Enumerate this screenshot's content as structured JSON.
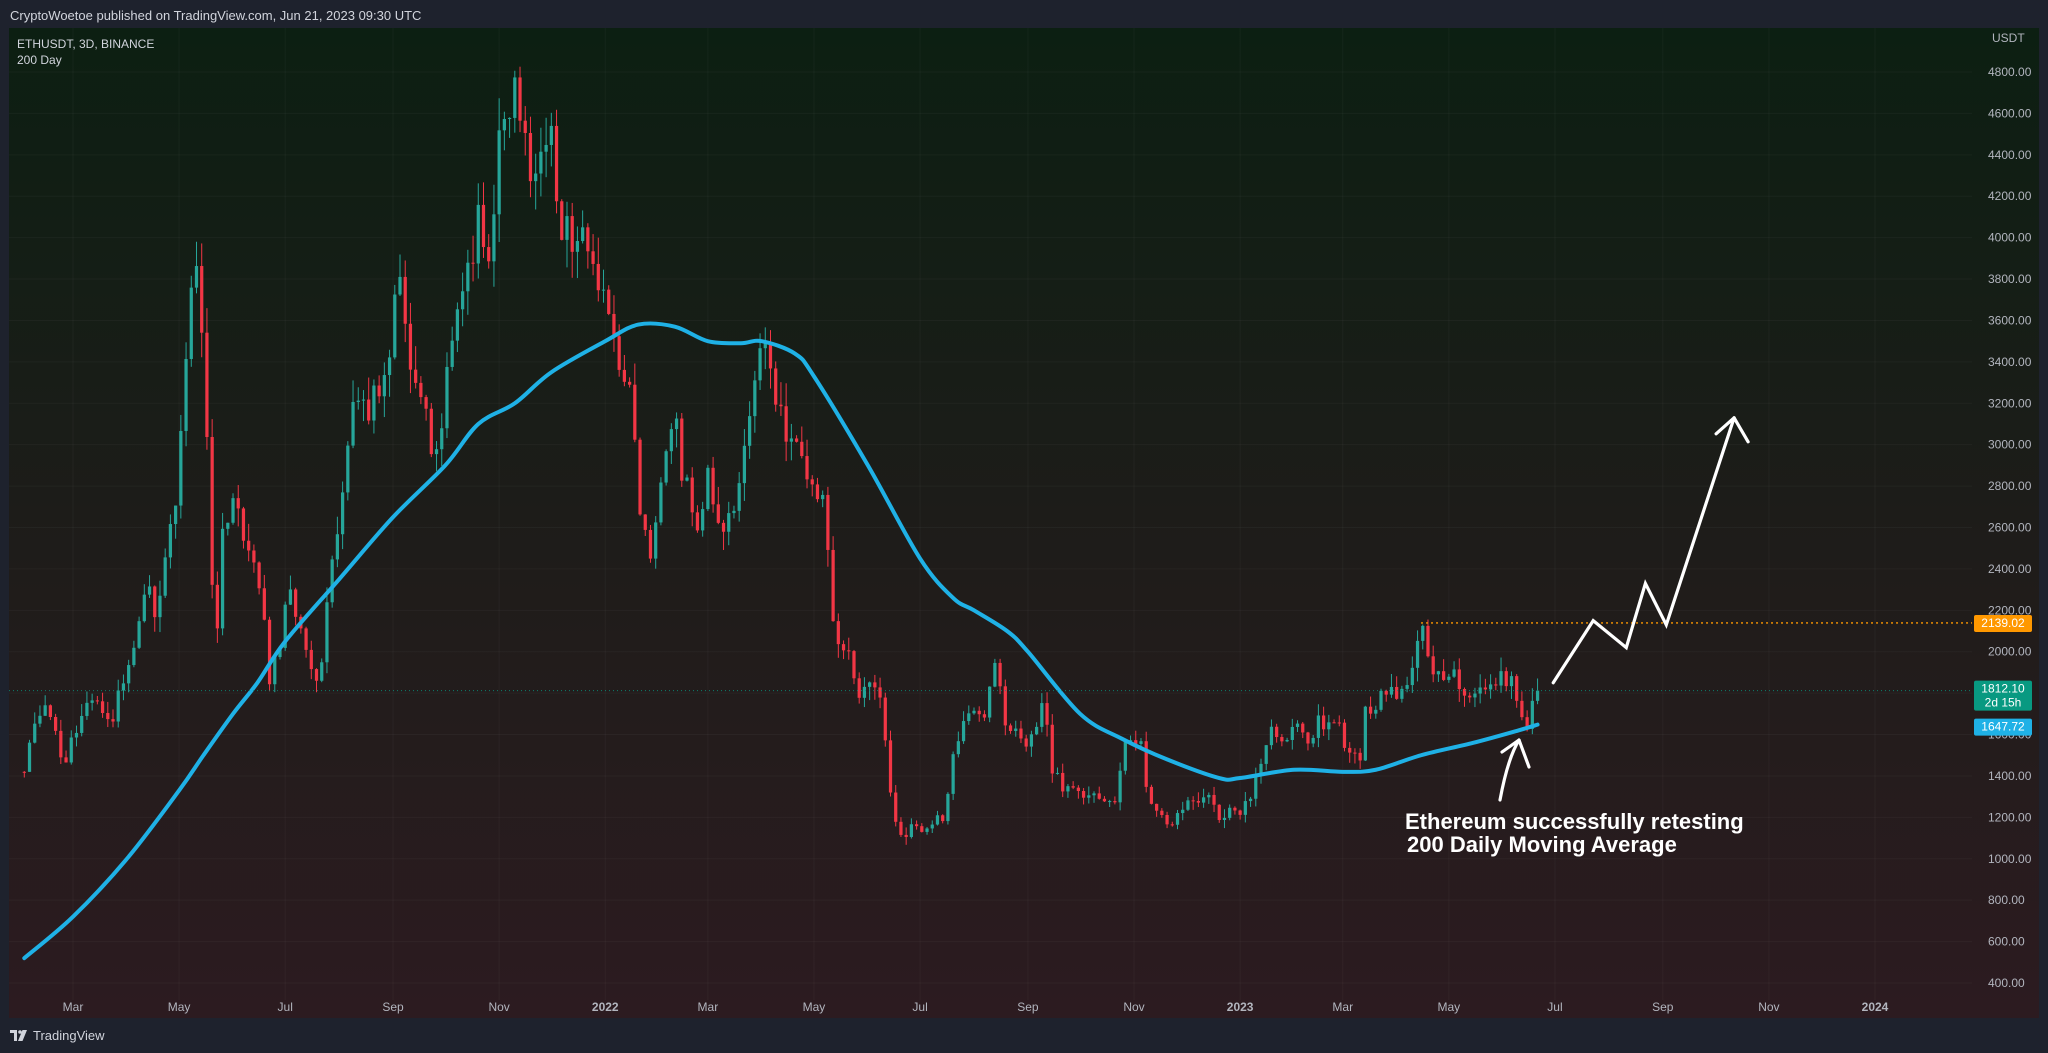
{
  "header": {
    "text": "CryptoWoetoe published on TradingView.com, Jun 21, 2023 09:30 UTC"
  },
  "legend": {
    "symbol": "ETHUSDT, 3D, BINANCE",
    "indicator": "200 Day"
  },
  "footer": {
    "brand": "TradingView",
    "logo_icon": "tradingview-logo-icon"
  },
  "annotation": {
    "line1": "Ethereum successfully retesting",
    "line2": "200 Daily Moving Average"
  },
  "colors": {
    "up": "#26a69a",
    "down": "#f23645",
    "ma": "#1fb1e6",
    "level": "#ff9800",
    "last_price": "#089981",
    "bg_top": "#0c1f12",
    "bg_bottom": "#2c1b20"
  },
  "chart_data": {
    "type": "candlestick",
    "symbol": "ETHUSDT",
    "timeframe": "3D",
    "exchange": "BINANCE",
    "currency_label": "USDT",
    "y_ticks": [
      400,
      600,
      800,
      1000,
      1200,
      1400,
      1600,
      1800,
      2000,
      2200,
      2400,
      2600,
      2800,
      3000,
      3200,
      3400,
      3600,
      3800,
      4000,
      4200,
      4400,
      4600,
      4800
    ],
    "x_ticks": [
      {
        "label": "Mar",
        "date": "2021-03-01"
      },
      {
        "label": "May",
        "date": "2021-05-01"
      },
      {
        "label": "Jul",
        "date": "2021-07-01"
      },
      {
        "label": "Sep",
        "date": "2021-09-01"
      },
      {
        "label": "Nov",
        "date": "2021-11-01"
      },
      {
        "label": "2022",
        "date": "2022-01-01"
      },
      {
        "label": "Mar",
        "date": "2022-03-01"
      },
      {
        "label": "May",
        "date": "2022-05-01"
      },
      {
        "label": "Jul",
        "date": "2022-07-01"
      },
      {
        "label": "Sep",
        "date": "2022-09-01"
      },
      {
        "label": "Nov",
        "date": "2022-11-01"
      },
      {
        "label": "2023",
        "date": "2023-01-01"
      },
      {
        "label": "Mar",
        "date": "2023-03-01"
      },
      {
        "label": "May",
        "date": "2023-05-01"
      },
      {
        "label": "Jul",
        "date": "2023-07-01"
      },
      {
        "label": "Sep",
        "date": "2023-09-01"
      },
      {
        "label": "Nov",
        "date": "2023-11-01"
      },
      {
        "label": "2024",
        "date": "2024-01-01"
      }
    ],
    "close_path": [
      [
        "2021-02-01",
        1420
      ],
      [
        "2021-02-08",
        1650
      ],
      [
        "2021-02-14",
        1800
      ],
      [
        "2021-02-22",
        1450
      ],
      [
        "2021-03-01",
        1560
      ],
      [
        "2021-03-08",
        1770
      ],
      [
        "2021-03-15",
        1800
      ],
      [
        "2021-03-22",
        1600
      ],
      [
        "2021-03-29",
        1850
      ],
      [
        "2021-04-05",
        2050
      ],
      [
        "2021-04-12",
        2300
      ],
      [
        "2021-04-18",
        2200
      ],
      [
        "2021-04-24",
        2450
      ],
      [
        "2021-05-01",
        2900
      ],
      [
        "2021-05-06",
        3500
      ],
      [
        "2021-05-10",
        3950
      ],
      [
        "2021-05-16",
        3400
      ],
      [
        "2021-05-19",
        2400
      ],
      [
        "2021-05-23",
        2150
      ],
      [
        "2021-05-27",
        2700
      ],
      [
        "2021-06-03",
        2650
      ],
      [
        "2021-06-10",
        2450
      ],
      [
        "2021-06-16",
        2300
      ],
      [
        "2021-06-22",
        1900
      ],
      [
        "2021-06-27",
        1950
      ],
      [
        "2021-07-03",
        2300
      ],
      [
        "2021-07-08",
        2100
      ],
      [
        "2021-07-15",
        1950
      ],
      [
        "2021-07-20",
        1800
      ],
      [
        "2021-07-25",
        2300
      ],
      [
        "2021-08-01",
        2600
      ],
      [
        "2021-08-08",
        3100
      ],
      [
        "2021-08-15",
        3200
      ],
      [
        "2021-08-22",
        3200
      ],
      [
        "2021-08-28",
        3250
      ],
      [
        "2021-09-03",
        3900
      ],
      [
        "2021-09-07",
        3500
      ],
      [
        "2021-09-12",
        3400
      ],
      [
        "2021-09-18",
        3300
      ],
      [
        "2021-09-24",
        2900
      ],
      [
        "2021-09-29",
        3000
      ],
      [
        "2021-10-03",
        3400
      ],
      [
        "2021-10-08",
        3600
      ],
      [
        "2021-10-14",
        3800
      ],
      [
        "2021-10-20",
        4150
      ],
      [
        "2021-10-26",
        4000
      ],
      [
        "2021-11-01",
        4450
      ],
      [
        "2021-11-07",
        4700
      ],
      [
        "2021-11-10",
        4750
      ],
      [
        "2021-11-14",
        4600
      ],
      [
        "2021-11-18",
        4150
      ],
      [
        "2021-11-24",
        4300
      ],
      [
        "2021-11-30",
        4550
      ],
      [
        "2021-12-04",
        4200
      ],
      [
        "2021-12-10",
        4000
      ],
      [
        "2021-12-16",
        3950
      ],
      [
        "2021-12-22",
        4000
      ],
      [
        "2021-12-28",
        3800
      ],
      [
        "2022-01-02",
        3750
      ],
      [
        "2022-01-07",
        3400
      ],
      [
        "2022-01-13",
        3300
      ],
      [
        "2022-01-19",
        3000
      ],
      [
        "2022-01-22",
        2550
      ],
      [
        "2022-01-28",
        2500
      ],
      [
        "2022-02-03",
        2800
      ],
      [
        "2022-02-09",
        3200
      ],
      [
        "2022-02-14",
        2900
      ],
      [
        "2022-02-19",
        2700
      ],
      [
        "2022-02-24",
        2600
      ],
      [
        "2022-03-01",
        2900
      ],
      [
        "2022-03-07",
        2550
      ],
      [
        "2022-03-13",
        2600
      ],
      [
        "2022-03-19",
        2900
      ],
      [
        "2022-03-25",
        3100
      ],
      [
        "2022-03-29",
        3400
      ],
      [
        "2022-04-02",
        3450
      ],
      [
        "2022-04-08",
        3300
      ],
      [
        "2022-04-14",
        3050
      ],
      [
        "2022-04-20",
        3050
      ],
      [
        "2022-04-26",
        2850
      ],
      [
        "2022-05-02",
        2800
      ],
      [
        "2022-05-06",
        2700
      ],
      [
        "2022-05-10",
        2350
      ],
      [
        "2022-05-14",
        2050
      ],
      [
        "2022-05-20",
        2000
      ],
      [
        "2022-05-26",
        1800
      ],
      [
        "2022-06-01",
        1850
      ],
      [
        "2022-06-07",
        1800
      ],
      [
        "2022-06-12",
        1500
      ],
      [
        "2022-06-16",
        1200
      ],
      [
        "2022-06-20",
        1100
      ],
      [
        "2022-06-28",
        1150
      ],
      [
        "2022-07-04",
        1100
      ],
      [
        "2022-07-08",
        1200
      ],
      [
        "2022-07-14",
        1150
      ],
      [
        "2022-07-19",
        1450
      ],
      [
        "2022-07-24",
        1600
      ],
      [
        "2022-07-30",
        1700
      ],
      [
        "2022-08-05",
        1650
      ],
      [
        "2022-08-10",
        1850
      ],
      [
        "2022-08-14",
        1950
      ],
      [
        "2022-08-19",
        1650
      ],
      [
        "2022-08-25",
        1600
      ],
      [
        "2022-08-31",
        1550
      ],
      [
        "2022-09-06",
        1600
      ],
      [
        "2022-09-10",
        1750
      ],
      [
        "2022-09-15",
        1450
      ],
      [
        "2022-09-21",
        1300
      ],
      [
        "2022-09-27",
        1350
      ],
      [
        "2022-10-03",
        1300
      ],
      [
        "2022-10-09",
        1300
      ],
      [
        "2022-10-15",
        1280
      ],
      [
        "2022-10-21",
        1300
      ],
      [
        "2022-10-27",
        1550
      ],
      [
        "2022-11-02",
        1600
      ],
      [
        "2022-11-06",
        1550
      ],
      [
        "2022-11-09",
        1300
      ],
      [
        "2022-11-14",
        1250
      ],
      [
        "2022-11-20",
        1150
      ],
      [
        "2022-11-26",
        1200
      ],
      [
        "2022-12-02",
        1250
      ],
      [
        "2022-12-08",
        1280
      ],
      [
        "2022-12-14",
        1300
      ],
      [
        "2022-12-18",
        1200
      ],
      [
        "2022-12-24",
        1220
      ],
      [
        "2022-12-30",
        1200
      ],
      [
        "2023-01-05",
        1250
      ],
      [
        "2023-01-11",
        1400
      ],
      [
        "2023-01-15",
        1550
      ],
      [
        "2023-01-21",
        1620
      ],
      [
        "2023-01-27",
        1600
      ],
      [
        "2023-02-02",
        1650
      ],
      [
        "2023-02-08",
        1550
      ],
      [
        "2023-02-14",
        1650
      ],
      [
        "2023-02-20",
        1680
      ],
      [
        "2023-02-26",
        1620
      ],
      [
        "2023-03-04",
        1560
      ],
      [
        "2023-03-10",
        1450
      ],
      [
        "2023-03-14",
        1700
      ],
      [
        "2023-03-20",
        1750
      ],
      [
        "2023-03-26",
        1780
      ],
      [
        "2023-04-01",
        1800
      ],
      [
        "2023-04-07",
        1850
      ],
      [
        "2023-04-12",
        1950
      ],
      [
        "2023-04-15",
        2100
      ],
      [
        "2023-04-20",
        1950
      ],
      [
        "2023-04-26",
        1880
      ],
      [
        "2023-05-02",
        1880
      ],
      [
        "2023-05-08",
        1850
      ],
      [
        "2023-05-14",
        1800
      ],
      [
        "2023-05-20",
        1820
      ],
      [
        "2023-05-26",
        1820
      ],
      [
        "2023-06-01",
        1880
      ],
      [
        "2023-06-06",
        1850
      ],
      [
        "2023-06-10",
        1750
      ],
      [
        "2023-06-15",
        1650
      ],
      [
        "2023-06-18",
        1730
      ],
      [
        "2023-06-21",
        1812
      ]
    ],
    "moving_average": {
      "name": "200 Day",
      "points": [
        [
          "2021-02-01",
          520
        ],
        [
          "2021-03-01",
          720
        ],
        [
          "2021-04-01",
          1000
        ],
        [
          "2021-05-01",
          1330
        ],
        [
          "2021-05-15",
          1500
        ],
        [
          "2021-06-01",
          1700
        ],
        [
          "2021-06-15",
          1850
        ],
        [
          "2021-07-01",
          2050
        ],
        [
          "2021-08-01",
          2350
        ],
        [
          "2021-09-01",
          2650
        ],
        [
          "2021-10-01",
          2900
        ],
        [
          "2021-10-20",
          3100
        ],
        [
          "2021-11-10",
          3200
        ],
        [
          "2021-12-01",
          3350
        ],
        [
          "2022-01-01",
          3500
        ],
        [
          "2022-01-20",
          3580
        ],
        [
          "2022-02-10",
          3570
        ],
        [
          "2022-03-01",
          3500
        ],
        [
          "2022-03-20",
          3490
        ],
        [
          "2022-04-01",
          3500
        ],
        [
          "2022-04-20",
          3440
        ],
        [
          "2022-05-01",
          3330
        ],
        [
          "2022-06-01",
          2900
        ],
        [
          "2022-07-01",
          2450
        ],
        [
          "2022-07-20",
          2260
        ],
        [
          "2022-08-01",
          2200
        ],
        [
          "2022-08-20",
          2100
        ],
        [
          "2022-09-01",
          2000
        ],
        [
          "2022-10-01",
          1700
        ],
        [
          "2022-10-25",
          1580
        ],
        [
          "2022-11-20",
          1480
        ],
        [
          "2022-12-20",
          1390
        ],
        [
          "2023-01-01",
          1390
        ],
        [
          "2023-02-01",
          1430
        ],
        [
          "2023-03-01",
          1420
        ],
        [
          "2023-03-20",
          1430
        ],
        [
          "2023-04-15",
          1500
        ],
        [
          "2023-05-15",
          1560
        ],
        [
          "2023-06-10",
          1620
        ],
        [
          "2023-06-21",
          1648
        ]
      ]
    },
    "price_labels": {
      "level": "2139.02",
      "last": "1812.10",
      "countdown": "2d 15h",
      "ma": "1647.72"
    },
    "level_line": 2139.02,
    "forecast_path": [
      [
        "2023-06-30",
        1850
      ],
      [
        "2023-07-23",
        2150
      ],
      [
        "2023-08-11",
        2020
      ],
      [
        "2023-08-22",
        2330
      ],
      [
        "2023-09-03",
        2130
      ],
      [
        "2023-10-12",
        3130
      ]
    ]
  }
}
